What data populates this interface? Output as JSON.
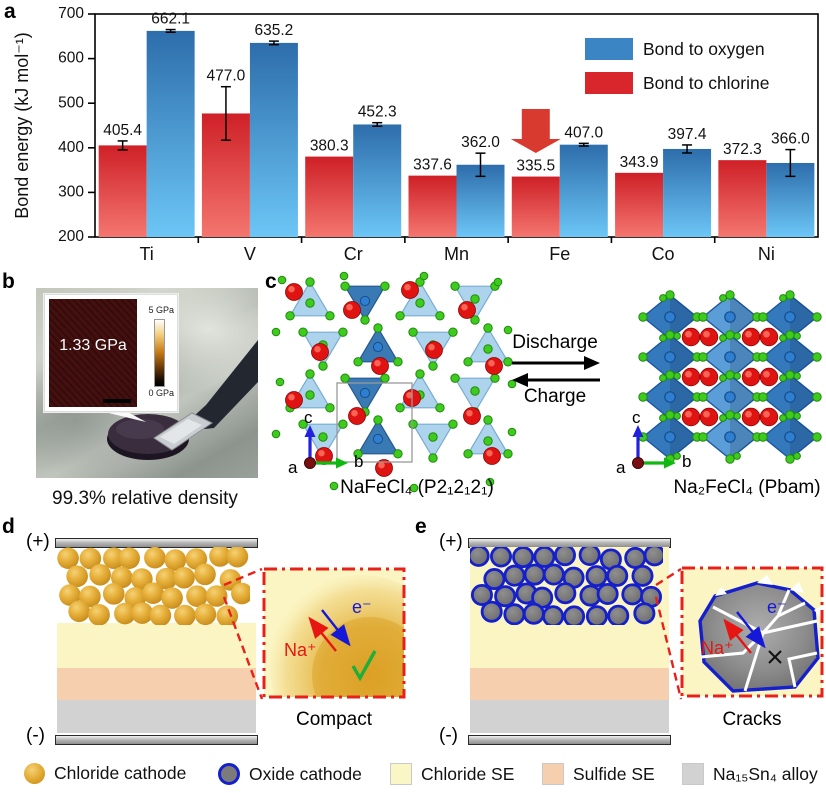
{
  "panel_letters": {
    "a": "a",
    "b": "b",
    "c": "c",
    "d": "d",
    "e": "e"
  },
  "chart_data": {
    "type": "bar",
    "title": "",
    "xlabel": "",
    "ylabel": "Bond energy (kJ mol⁻¹)",
    "ylim": [
      200,
      700
    ],
    "yticks": [
      200,
      300,
      400,
      500,
      600,
      700
    ],
    "categories": [
      "Ti",
      "V",
      "Cr",
      "Mn",
      "Fe",
      "Co",
      "Ni"
    ],
    "series": [
      {
        "name": "Bond to oxygen",
        "legend_color": "#3c85c4",
        "color_top": "#2d6dab",
        "color_bottom": "#6cc6f6",
        "values": [
          662.1,
          635.2,
          452.3,
          362.0,
          407.0,
          397.4,
          366.0
        ],
        "errors": [
          3,
          4,
          4,
          26,
          3,
          9,
          30
        ]
      },
      {
        "name": "Bond to chlorine",
        "legend_color": "#d8262c",
        "color_top": "#ce2027",
        "color_bottom": "#f4766f",
        "values": [
          405.4,
          477.0,
          380.3,
          337.6,
          335.5,
          343.9,
          372.3
        ],
        "errors": [
          10,
          60,
          0,
          0,
          0,
          0,
          0
        ]
      }
    ],
    "annotation": {
      "type": "down-arrow",
      "category": "Fe",
      "series": "Bond to chlorine",
      "color": "#d93a30"
    },
    "legend_position": "top-right",
    "grid": false
  },
  "panel_b": {
    "pressure_label": "1.33 GPa",
    "colorbar_top": "5 GPa",
    "colorbar_bottom": "0 GPa",
    "caption": "99.3% relative density"
  },
  "panel_c": {
    "left_caption": "NaFeCl₄ (P2₁2₁2₁)",
    "right_caption": "Na₂FeCl₄ (Pbam)",
    "arrow_top_label": "Discharge",
    "arrow_bottom_label": "Charge",
    "axes": {
      "up": "c",
      "right": "b",
      "origin": "a"
    },
    "colors": {
      "chlorine_atom": "#3ecb1e",
      "sodium_atom": "#e01313",
      "polyhedron": "#3b82c9"
    }
  },
  "panel_d": {
    "top_electrode_label": "(+)",
    "bottom_electrode_label": "(-)",
    "ion_label": "Na⁺",
    "electron_label": "e⁻",
    "status_icon": "check-icon",
    "inset_caption": "Compact"
  },
  "panel_e": {
    "top_electrode_label": "(+)",
    "bottom_electrode_label": "(-)",
    "ion_label": "Na⁺",
    "electron_label": "e⁻",
    "status_icon": "cross-icon",
    "inset_caption": "Cracks"
  },
  "legend": {
    "items": [
      {
        "label": "Chloride cathode",
        "swatch": "gold-circle",
        "color": "#e0a62e"
      },
      {
        "label": "Oxide cathode",
        "swatch": "gray-circle-blue-ring",
        "color": "#7b7b7b",
        "ring": "#1520cc"
      },
      {
        "label": "Chloride SE",
        "swatch": "square",
        "color": "#fbf6c5"
      },
      {
        "label": "Sulfide SE",
        "swatch": "square",
        "color": "#f6cfae"
      },
      {
        "label": "Na₁₅Sn₄ alloy",
        "swatch": "square",
        "color": "#d2d2d2"
      }
    ]
  },
  "layer_colors": {
    "chloride_se": "#fbf5c3",
    "sulfide_se": "#f6cfae",
    "alloy": "#d2d2d2",
    "inset_border": "#e8201a"
  }
}
